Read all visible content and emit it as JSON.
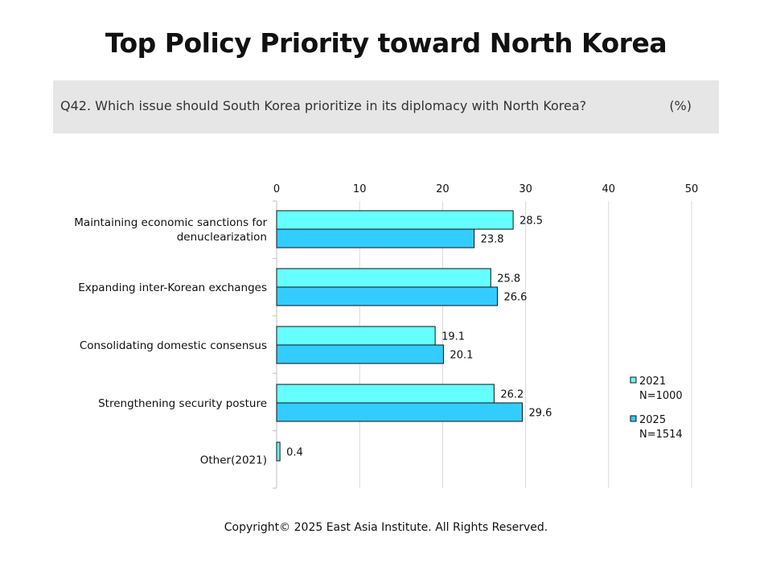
{
  "title": "Top Policy Priority toward North Korea",
  "question": "Q42. Which issue should South Korea prioritize in its diplomacy with North Korea?",
  "unit": "(%)",
  "copyright": "Copyright© 2025 East Asia Institute. All Rights Reserved.",
  "chart_data": {
    "type": "bar",
    "orientation": "horizontal",
    "categories": [
      [
        "Maintaining economic sanctions for",
        "denuclearization"
      ],
      [
        "Expanding inter-Korean exchanges"
      ],
      [
        "Consolidating domestic consensus"
      ],
      [
        "Strengthening security posture"
      ],
      [
        "Other(2021)"
      ]
    ],
    "series": [
      {
        "name": "2021",
        "note": "N=1000",
        "color": "#66ffff",
        "values": [
          28.5,
          25.8,
          19.1,
          26.2,
          0.4
        ]
      },
      {
        "name": "2025",
        "note": "N=1514",
        "color": "#33ccff",
        "values": [
          23.8,
          26.6,
          20.1,
          29.6,
          null
        ]
      }
    ],
    "xlim": [
      0,
      50
    ],
    "xticks": [
      0,
      10,
      20,
      30,
      40,
      50
    ],
    "axis_position": "top",
    "grid": true,
    "legend_position": "right"
  }
}
